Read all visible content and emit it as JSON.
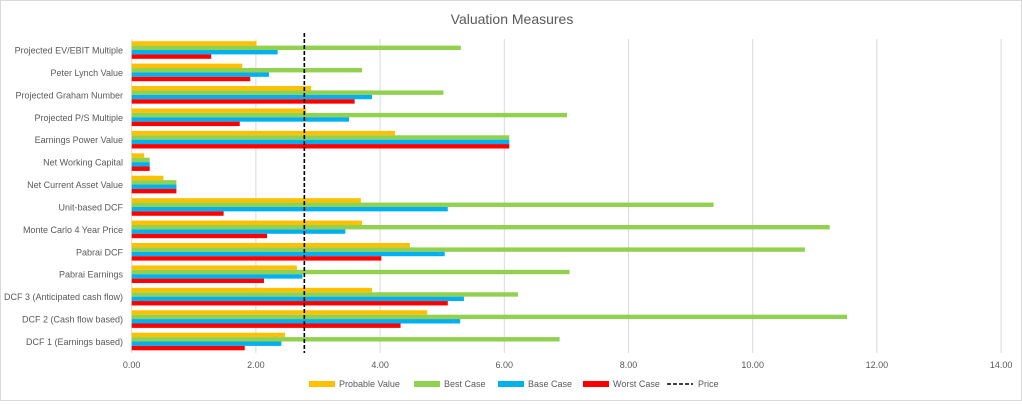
{
  "chart_data": {
    "type": "bar",
    "orientation": "horizontal",
    "title": "Valuation Measures",
    "categories": [
      "Projected EV/EBIT Multiple",
      "Peter Lynch Value",
      "Projected Graham Number",
      "Projected P/S Multiple",
      "Earnings Power Value",
      "Net Working Capital",
      "Net Current Asset Value",
      "Unit-based DCF",
      "Monte Carlo 4 Year Price",
      "Pabrai DCF",
      "Pabrai Earnings",
      "DCF 3 (Anticipated cash flow)",
      "DCF 2 (Cash flow based)",
      "DCF 1 (Earnings based)"
    ],
    "series": [
      {
        "name": "Probable Value",
        "color": "#FFC000",
        "values": [
          2.01,
          1.78,
          2.89,
          2.81,
          4.24,
          0.2,
          0.51,
          3.69,
          3.71,
          4.48,
          2.66,
          3.87,
          4.76,
          2.47
        ]
      },
      {
        "name": "Best Case",
        "color": "#92D050",
        "values": [
          5.3,
          3.71,
          5.02,
          7.01,
          6.08,
          0.29,
          0.72,
          9.37,
          11.24,
          10.84,
          7.05,
          6.22,
          11.52,
          6.89
        ]
      },
      {
        "name": "Base Case",
        "color": "#00B0F0",
        "values": [
          2.35,
          2.21,
          3.87,
          3.5,
          6.08,
          0.29,
          0.72,
          5.09,
          3.44,
          5.04,
          2.75,
          5.35,
          5.29,
          2.41
        ]
      },
      {
        "name": "Worst Case",
        "color": "#FF0000",
        "values": [
          1.28,
          1.91,
          3.59,
          1.74,
          6.08,
          0.29,
          0.72,
          1.48,
          2.18,
          4.02,
          2.13,
          5.09,
          4.33,
          1.82
        ]
      }
    ],
    "reference_line": {
      "name": "Price",
      "value": 2.78,
      "style": "dashed",
      "color": "#000000"
    },
    "xlim": [
      0,
      14
    ],
    "xticks": [
      "0.00",
      "2.00",
      "4.00",
      "6.00",
      "8.00",
      "10.00",
      "12.00",
      "14.00"
    ],
    "grid": true,
    "legend": "bottom"
  }
}
